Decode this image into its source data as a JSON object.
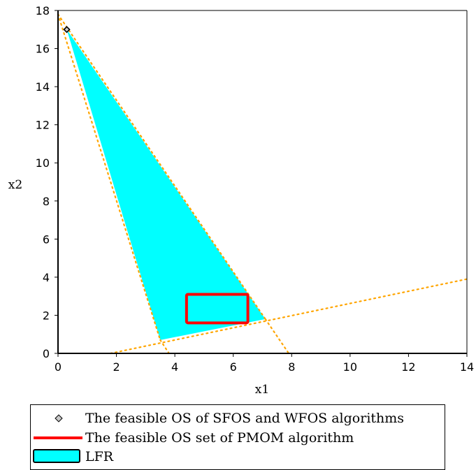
{
  "chart_data": {
    "type": "area",
    "xlabel": "x1",
    "ylabel": "x2",
    "xlim": [
      0,
      14
    ],
    "ylim": [
      0,
      18
    ],
    "xticks": [
      0,
      2,
      4,
      6,
      8,
      10,
      12,
      14
    ],
    "yticks": [
      0,
      2,
      4,
      6,
      8,
      10,
      12,
      14,
      16,
      18
    ],
    "grid": false,
    "legend_position": "bottom",
    "series": [
      {
        "name": "LFR",
        "kind": "polygon",
        "color": "#00ffff",
        "x": [
          0.3,
          3.5,
          7.1
        ],
        "y": [
          17.0,
          0.7,
          1.8
        ]
      },
      {
        "name": "The feasible OS set of PMOM algorithm",
        "kind": "rectangle",
        "color": "#ff0000",
        "x": [
          4.4,
          6.5
        ],
        "y": [
          1.6,
          3.1
        ]
      },
      {
        "name": "The feasible OS of SFOS and WFOS algorithms",
        "kind": "point",
        "color": "#000000",
        "x": [
          0.3
        ],
        "y": [
          17.0
        ]
      }
    ],
    "constraint_lines": [
      {
        "color": "#ffa500",
        "x": [
          0.0,
          3.5
        ],
        "y": [
          17.8,
          0.7
        ]
      },
      {
        "color": "#ffa500",
        "x": [
          0.0,
          7.1
        ],
        "y": [
          17.8,
          1.8
        ]
      },
      {
        "color": "#ffa500",
        "x": [
          3.5,
          3.8
        ],
        "y": [
          0.7,
          0.0
        ]
      },
      {
        "color": "#ffa500",
        "x": [
          7.1,
          7.9
        ],
        "y": [
          1.8,
          0.0
        ]
      },
      {
        "color": "#ffa500",
        "x": [
          1.8,
          14.0
        ],
        "y": [
          0.0,
          3.9
        ]
      }
    ]
  },
  "legend": {
    "items": [
      {
        "label": "The feasible OS of SFOS and WFOS algorithms",
        "symbol": "diamond"
      },
      {
        "label": "The feasible OS set of PMOM algorithm",
        "symbol": "line"
      },
      {
        "label": "LFR",
        "symbol": "box"
      }
    ]
  }
}
